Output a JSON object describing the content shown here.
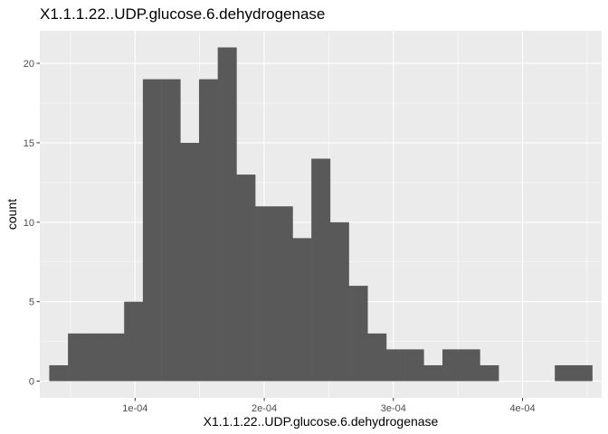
{
  "chart_data": {
    "type": "histogram",
    "title": "X1.1.1.22..UDP.glucose.6.dehydrogenase",
    "xlabel": "X1.1.1.22..UDP.glucose.6.dehydrogenase",
    "ylabel": "count",
    "bin_width": 1.45e-05,
    "bins": [
      {
        "x0": 3.35e-05,
        "count": 1
      },
      {
        "x0": 4.8e-05,
        "count": 3
      },
      {
        "x0": 6.25e-05,
        "count": 3
      },
      {
        "x0": 7.7e-05,
        "count": 3
      },
      {
        "x0": 9.15e-05,
        "count": 5
      },
      {
        "x0": 0.000106,
        "count": 19
      },
      {
        "x0": 0.0001205,
        "count": 19
      },
      {
        "x0": 0.000135,
        "count": 15
      },
      {
        "x0": 0.0001495,
        "count": 19
      },
      {
        "x0": 0.000164,
        "count": 21
      },
      {
        "x0": 0.0001785,
        "count": 13
      },
      {
        "x0": 0.000193,
        "count": 11
      },
      {
        "x0": 0.0002075,
        "count": 11
      },
      {
        "x0": 0.000222,
        "count": 9
      },
      {
        "x0": 0.0002365,
        "count": 14
      },
      {
        "x0": 0.000251,
        "count": 10
      },
      {
        "x0": 0.0002655,
        "count": 6
      },
      {
        "x0": 0.00028,
        "count": 3
      },
      {
        "x0": 0.0002945,
        "count": 2
      },
      {
        "x0": 0.000309,
        "count": 2
      },
      {
        "x0": 0.0003235,
        "count": 1
      },
      {
        "x0": 0.000338,
        "count": 2
      },
      {
        "x0": 0.0003525,
        "count": 2
      },
      {
        "x0": 0.000367,
        "count": 1
      },
      {
        "x0": 0.0003815,
        "count": 0
      },
      {
        "x0": 0.000396,
        "count": 0
      },
      {
        "x0": 0.0004105,
        "count": 0
      },
      {
        "x0": 0.000425,
        "count": 1
      },
      {
        "x0": 0.0004395,
        "count": 1
      }
    ],
    "xlim": [
      2.62e-05,
      0.0004613
    ],
    "ylim": [
      -1.05,
      22.05
    ],
    "x_ticks": [
      {
        "value": 0.0001,
        "label": "1e-04"
      },
      {
        "value": 0.0002,
        "label": "2e-04"
      },
      {
        "value": 0.0003,
        "label": "3e-04"
      },
      {
        "value": 0.0004,
        "label": "4e-04"
      }
    ],
    "y_ticks": [
      {
        "value": 0,
        "label": "0"
      },
      {
        "value": 5,
        "label": "5"
      },
      {
        "value": 10,
        "label": "10"
      },
      {
        "value": 15,
        "label": "15"
      },
      {
        "value": 20,
        "label": "20"
      }
    ],
    "grid": true,
    "colors": {
      "panel": "#ebebeb",
      "grid": "#ffffff",
      "bar": "#595959",
      "tick_text": "#4d4d4d",
      "tick_mark": "#333333"
    }
  }
}
